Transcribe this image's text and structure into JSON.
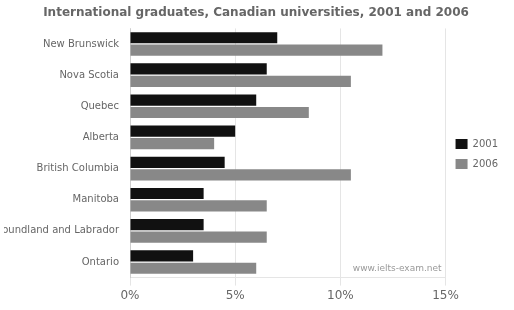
{
  "chart_data": {
    "type": "bar",
    "orientation": "horizontal",
    "title": "International graduates, Canadian universities, 2001 and 2006",
    "categories": [
      "New Brunswick",
      "Nova Scotia",
      "Quebec",
      "Alberta",
      "British Columbia",
      "Manitoba",
      "Newfoundland and Labrador",
      "Ontario"
    ],
    "series": [
      {
        "name": "2001",
        "color": "#111111",
        "values": [
          7.0,
          6.5,
          6.0,
          5.0,
          4.5,
          3.5,
          3.5,
          3.0
        ]
      },
      {
        "name": "2006",
        "color": "#888888",
        "values": [
          12.0,
          10.5,
          8.5,
          4.0,
          10.5,
          6.5,
          6.5,
          6.0
        ]
      }
    ],
    "xlim": [
      0,
      15
    ],
    "xticks": [
      {
        "value": 0,
        "label": "0%"
      },
      {
        "value": 5,
        "label": "5%"
      },
      {
        "value": 10,
        "label": "10%"
      },
      {
        "value": 15,
        "label": "15%"
      }
    ],
    "grid": true,
    "legend": "right",
    "annotations": [
      "www.ielts-exam.net"
    ]
  }
}
